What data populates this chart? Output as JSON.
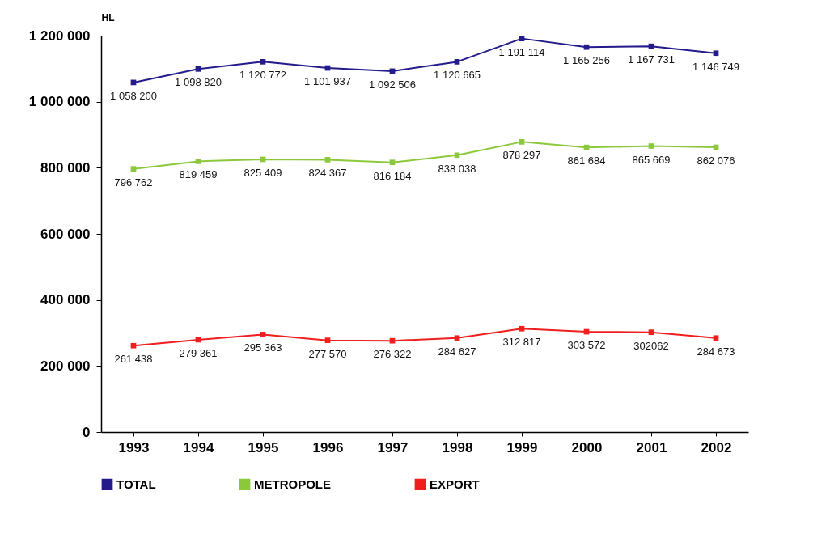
{
  "chart_data": {
    "type": "line",
    "ylabel": "HL",
    "categories": [
      "1993",
      "1994",
      "1995",
      "1996",
      "1997",
      "1998",
      "1999",
      "2000",
      "2001",
      "2002"
    ],
    "series": [
      {
        "name": "TOTAL",
        "color": "#231a8c",
        "values": [
          1058200,
          1098820,
          1120772,
          1101937,
          1092506,
          1120665,
          1191114,
          1165256,
          1167731,
          1146749
        ],
        "value_labels": [
          "1 058 200",
          "1 098 820",
          "1 120 772",
          "1 101 937",
          "1 092 506",
          "1 120 665",
          "1 191 114",
          "1 165 256",
          "1 167 731",
          "1 146 749"
        ]
      },
      {
        "name": "METROPOLE",
        "color": "#8cc83c",
        "values": [
          796762,
          819459,
          825409,
          824367,
          816184,
          838038,
          878297,
          861684,
          865669,
          862076
        ],
        "value_labels": [
          "796 762",
          "819 459",
          "825 409",
          "824 367",
          "816 184",
          "838 038",
          "878 297",
          "861 684",
          "865 669",
          "862 076"
        ]
      },
      {
        "name": "EXPORT",
        "color": "#f01e1e",
        "values": [
          261438,
          279361,
          295363,
          277570,
          276322,
          284627,
          312817,
          303572,
          302062,
          284673
        ],
        "value_labels": [
          "261 438",
          "279 361",
          "295 363",
          "277 570",
          "276 322",
          "284 627",
          "312 817",
          "303 572",
          "302062",
          "284 673"
        ]
      }
    ],
    "ylim": [
      0,
      1200000
    ],
    "yticks": [
      0,
      {
        "value": 200000,
        "label": "200 000"
      },
      {
        "value": 400000,
        "label": "400 000"
      },
      {
        "value": 600000,
        "label": "600 000"
      },
      {
        "value": 800000,
        "label": "800 000"
      },
      {
        "value": 1000000,
        "label": "1 000 000"
      },
      {
        "value": 1200000,
        "label": "1 200 000"
      }
    ],
    "grid": false,
    "legend": "bottom",
    "marker": "square"
  }
}
